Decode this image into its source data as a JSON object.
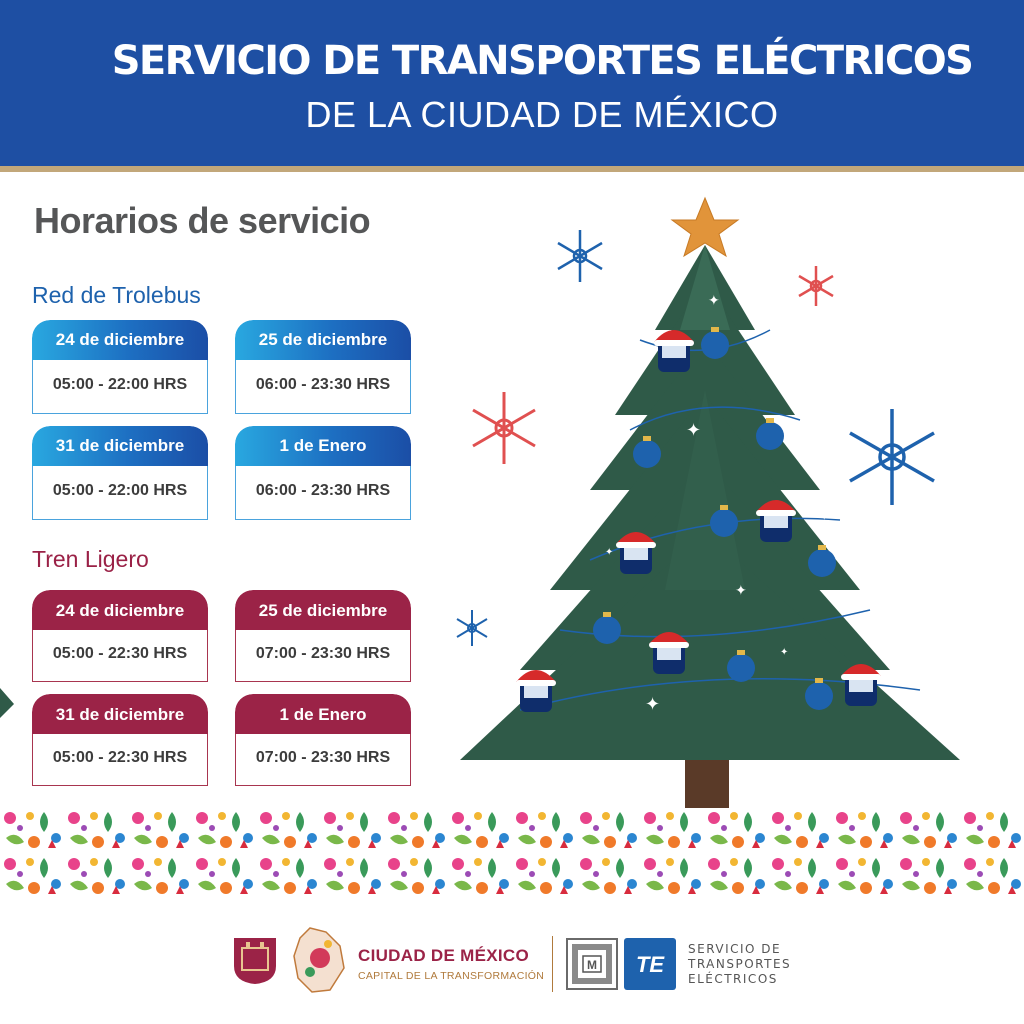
{
  "header": {
    "line1": "SERVICIO DE TRANSPORTES ELÉCTRICOS",
    "line2": "DE LA CIUDAD DE MÉXICO"
  },
  "section_title": "Horarios de servicio",
  "trolebus": {
    "title": "Red de Trolebus",
    "schedules": [
      {
        "date": "24 de diciembre",
        "hours": "05:00 - 22:00 HRS"
      },
      {
        "date": "25 de diciembre",
        "hours": "06:00 - 23:30 HRS"
      },
      {
        "date": "31 de diciembre",
        "hours": "05:00 - 22:00 HRS"
      },
      {
        "date": "1 de Enero",
        "hours": "06:00 - 23:30 HRS"
      }
    ]
  },
  "tren_ligero": {
    "title": "Tren Ligero",
    "schedules": [
      {
        "date": "24 de diciembre",
        "hours": "05:00 - 22:30 HRS"
      },
      {
        "date": "25 de diciembre",
        "hours": "07:00 - 23:30 HRS"
      },
      {
        "date": "31 de diciembre",
        "hours": "05:00 - 22:30 HRS"
      },
      {
        "date": "1 de Enero",
        "hours": "07:00 - 23:30 HRS"
      }
    ]
  },
  "footer": {
    "cdmx_name": "CIUDAD DE MÉXICO",
    "cdmx_tagline": "CAPITAL DE LA TRANSFORMACIÓN",
    "metro_logo_text": "M",
    "ste_logo_text": "TE",
    "ste_lines": [
      "SERVICIO DE",
      "TRANSPORTES",
      "ELÉCTRICOS"
    ]
  },
  "colors": {
    "header_blue": "#1e4fa3",
    "trolebus_blue": "#1e62ad",
    "tren_red": "#9b2347",
    "tree_green": "#2f5a48",
    "gold": "#c2a77a"
  },
  "icons": [
    "christmas-tree-icon",
    "star-icon",
    "snowflake-icon",
    "ornament-icon",
    "trolleybus-icon"
  ]
}
